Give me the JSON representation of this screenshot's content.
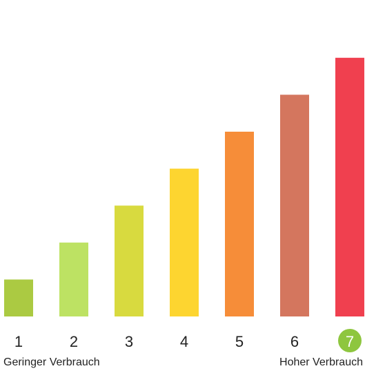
{
  "chart_data": {
    "type": "bar",
    "categories": [
      "1",
      "2",
      "3",
      "4",
      "5",
      "6",
      "7"
    ],
    "values": [
      1,
      2,
      3,
      4,
      5,
      6,
      7
    ],
    "colors": [
      "#abca42",
      "#bde263",
      "#d8da3f",
      "#fdd530",
      "#f68d39",
      "#d4765e",
      "#f0404f"
    ],
    "ylim": [
      0,
      7
    ],
    "grid": false,
    "legend": "none",
    "selected_category": "7",
    "selected_badge_color": "#8ec63f",
    "captions": {
      "low": "Geringer Verbrauch",
      "high": "Hoher Verbrauch"
    }
  }
}
